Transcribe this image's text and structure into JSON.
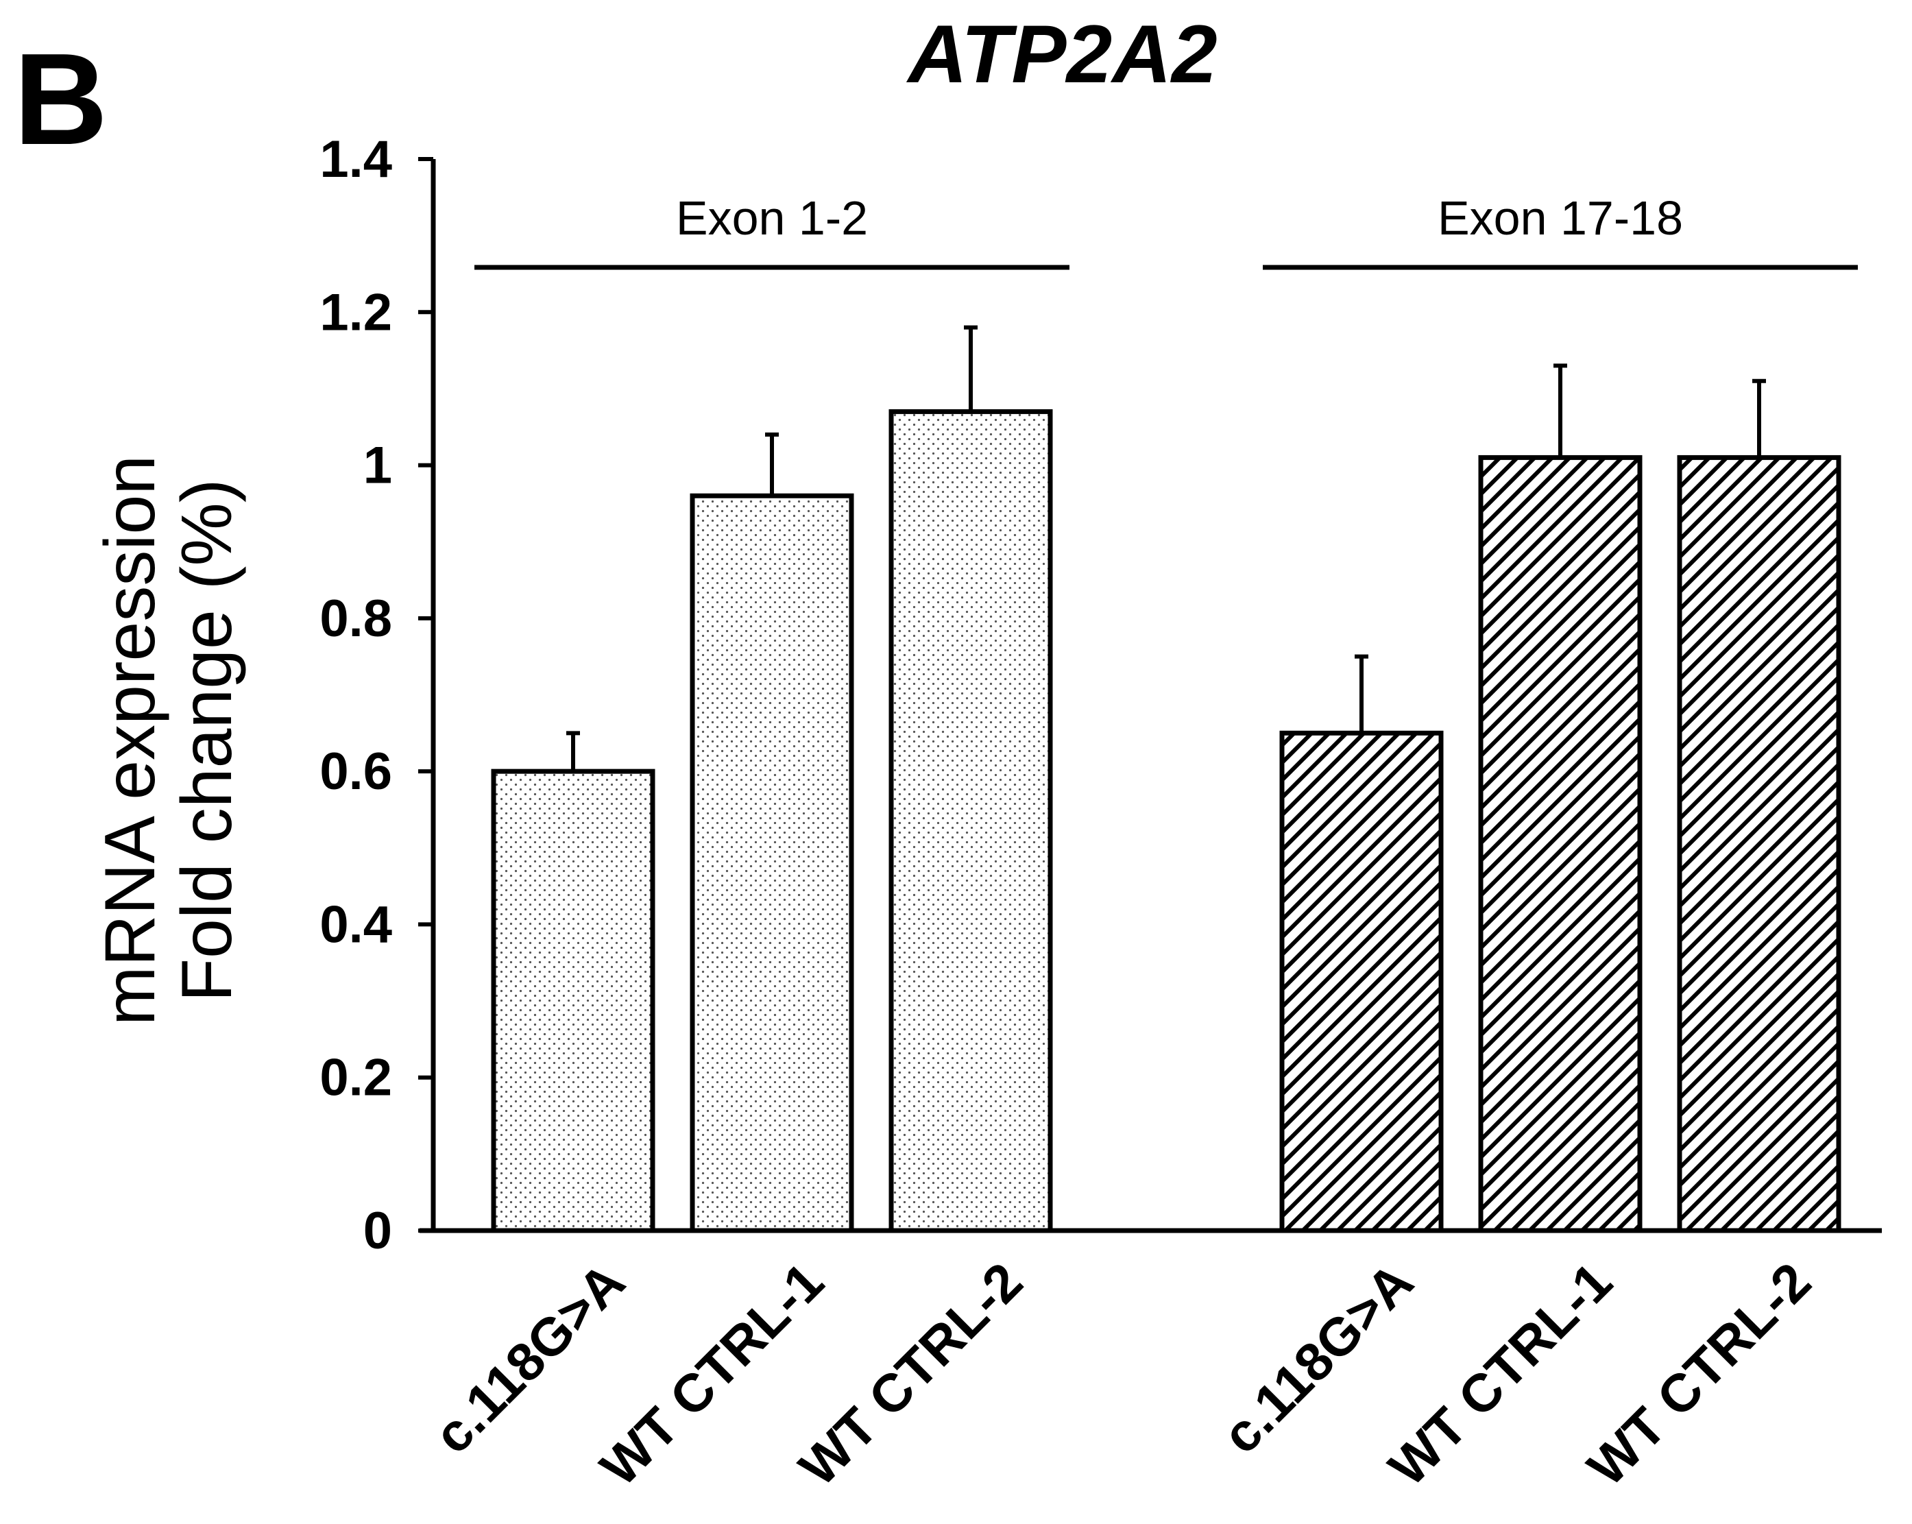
{
  "panel_letter": "B",
  "chart_data": {
    "type": "bar",
    "title": "ATP2A2",
    "ylabel_line1": "mRNA expression",
    "ylabel_line2": "Fold change (%)",
    "xlabel": "",
    "ylim": [
      0,
      1.4
    ],
    "yticks": [
      "0",
      "0.2",
      "0.4",
      "0.6",
      "0.8",
      "1",
      "1.2",
      "1.4"
    ],
    "grid": false,
    "groups": [
      {
        "name": "Exon 1-2",
        "pattern": "dots",
        "categories": [
          "c.118G>A",
          "WT CTRL-1",
          "WT CTRL-2"
        ],
        "values": [
          0.6,
          0.96,
          1.07
        ],
        "errors": [
          0.05,
          0.08,
          0.11
        ]
      },
      {
        "name": "Exon 17-18",
        "pattern": "hatch",
        "categories": [
          "c.118G>A",
          "WT CTRL-1",
          "WT CTRL-2"
        ],
        "values": [
          0.65,
          1.01,
          1.01
        ],
        "errors": [
          0.1,
          0.12,
          0.1
        ]
      }
    ],
    "colors": {
      "axis": "#000000",
      "bar_fill": "#ffffff",
      "pattern": "#000000"
    }
  }
}
